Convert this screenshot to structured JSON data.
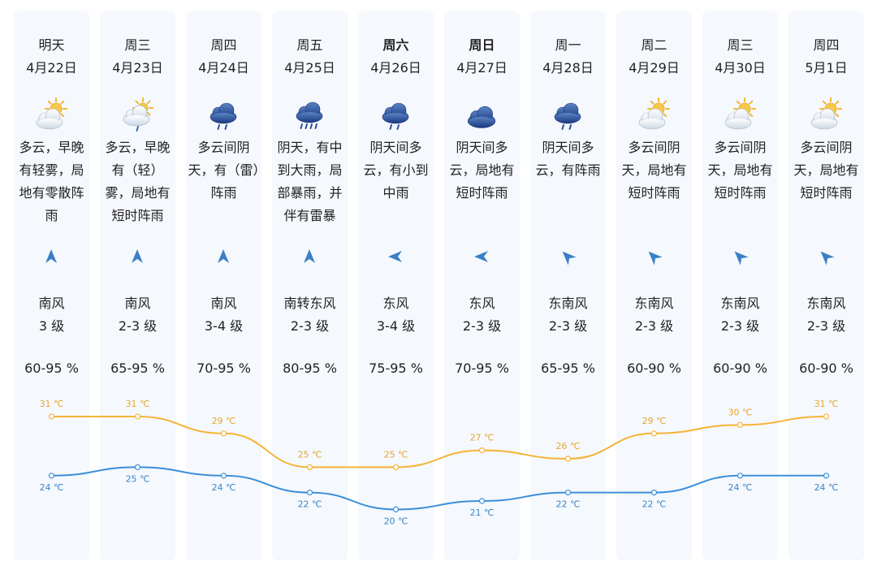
{
  "days": [
    {
      "weekday": "明天",
      "date": "4月22日",
      "bold": false,
      "icon": "partly-cloudy-icon",
      "desc": "多云，早晚有轻雾，局地有零散阵雨",
      "wind_dir": "南风",
      "wind_level": "3 级",
      "wind_rot": 0,
      "humidity": "60-95 %",
      "high": 31,
      "low": 24,
      "high_label": "31 ℃",
      "low_label": "24 ℃"
    },
    {
      "weekday": "周三",
      "date": "4月23日",
      "bold": false,
      "icon": "cloudy-sun-drizzle-icon",
      "desc": "多云，早晚有（轻）雾，局地有短时阵雨",
      "wind_dir": "南风",
      "wind_level": "2-3 级",
      "wind_rot": 0,
      "humidity": "65-95 %",
      "high": 31,
      "low": 25,
      "high_label": "31 ℃",
      "low_label": "25 ℃"
    },
    {
      "weekday": "周四",
      "date": "4月24日",
      "bold": false,
      "icon": "rain-icon",
      "desc": "多云间阴天，有（雷）阵雨",
      "wind_dir": "南风",
      "wind_level": "3-4 级",
      "wind_rot": 0,
      "humidity": "70-95 %",
      "high": 29,
      "low": 24,
      "high_label": "29 ℃",
      "low_label": "24 ℃"
    },
    {
      "weekday": "周五",
      "date": "4月25日",
      "bold": false,
      "icon": "heavy-rain-icon",
      "desc": "阴天，有中到大雨，局部暴雨，并伴有雷暴",
      "wind_dir": "南转东风",
      "wind_level": "2-3 级",
      "wind_rot": 0,
      "humidity": "80-95 %",
      "high": 25,
      "low": 22,
      "high_label": "25 ℃",
      "low_label": "22 ℃"
    },
    {
      "weekday": "周六",
      "date": "4月26日",
      "bold": true,
      "icon": "rain-icon",
      "desc": "阴天间多云，有小到中雨",
      "wind_dir": "东风",
      "wind_level": "3-4 级",
      "wind_rot": -90,
      "humidity": "75-95 %",
      "high": 25,
      "low": 20,
      "high_label": "25 ℃",
      "low_label": "20 ℃"
    },
    {
      "weekday": "周日",
      "date": "4月27日",
      "bold": true,
      "icon": "overcast-icon",
      "desc": "阴天间多云，局地有短时阵雨",
      "wind_dir": "东风",
      "wind_level": "2-3 级",
      "wind_rot": -90,
      "humidity": "70-95 %",
      "high": 27,
      "low": 21,
      "high_label": "27 ℃",
      "low_label": "21 ℃"
    },
    {
      "weekday": "周一",
      "date": "4月28日",
      "bold": false,
      "icon": "rain-icon",
      "desc": "阴天间多云，有阵雨",
      "wind_dir": "东南风",
      "wind_level": "2-3 级",
      "wind_rot": -45,
      "humidity": "65-95 %",
      "high": 26,
      "low": 22,
      "high_label": "26 ℃",
      "low_label": "22 ℃"
    },
    {
      "weekday": "周二",
      "date": "4月29日",
      "bold": false,
      "icon": "partly-cloudy-icon",
      "desc": "多云间阴天，局地有短时阵雨",
      "wind_dir": "东南风",
      "wind_level": "2-3 级",
      "wind_rot": -45,
      "humidity": "60-90 %",
      "high": 29,
      "low": 22,
      "high_label": "29 ℃",
      "low_label": "22 ℃"
    },
    {
      "weekday": "周三",
      "date": "4月30日",
      "bold": false,
      "icon": "partly-cloudy-icon",
      "desc": "多云间阴天，局地有短时阵雨",
      "wind_dir": "东南风",
      "wind_level": "2-3 级",
      "wind_rot": -45,
      "humidity": "60-90 %",
      "high": 30,
      "low": 24,
      "high_label": "30 ℃",
      "low_label": "24 ℃"
    },
    {
      "weekday": "周四",
      "date": "5月1日",
      "bold": false,
      "icon": "partly-cloudy-icon",
      "desc": "多云间阴天，局地有短时阵雨",
      "wind_dir": "东南风",
      "wind_level": "2-3 级",
      "wind_rot": -45,
      "humidity": "60-90 %",
      "high": 31,
      "low": 24,
      "high_label": "31 ℃",
      "low_label": "24 ℃"
    }
  ],
  "colors": {
    "high_line": "#f5b436",
    "low_line": "#3b8fd9",
    "high_text": "#e8a530",
    "low_text": "#3a86c8",
    "arrow": "#3b7fc6",
    "column_bg": "#f5f8fd"
  }
}
